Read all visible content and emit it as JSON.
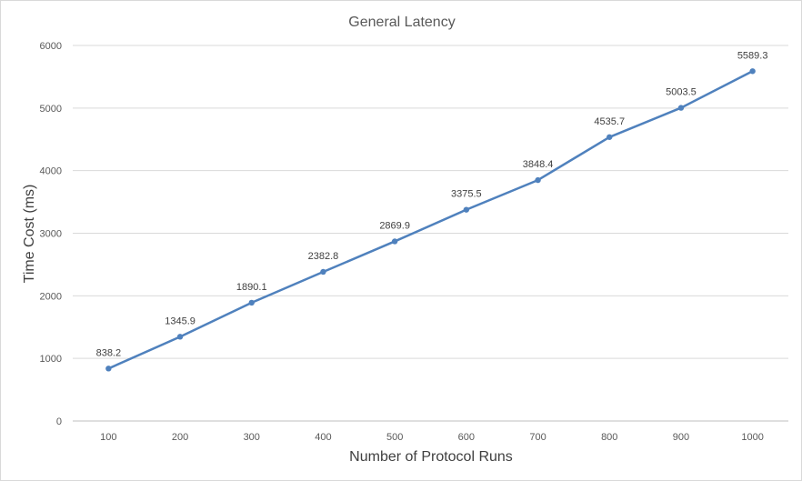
{
  "chart_data": {
    "type": "line",
    "title": "General Latency",
    "xlabel": "Number of Protocol Runs",
    "ylabel": "Time Cost (ms)",
    "categories": [
      "100",
      "200",
      "300",
      "400",
      "500",
      "600",
      "700",
      "800",
      "900",
      "1000"
    ],
    "series": [
      {
        "name": "General Latency",
        "values": [
          838.2,
          1345.9,
          1890.1,
          2382.8,
          2869.9,
          3375.5,
          3848.4,
          4535.7,
          5003.5,
          5589.3
        ],
        "data_labels": [
          "838.2",
          "1345.9",
          "1890.1",
          "2382.8",
          "2869.9",
          "3375.5",
          "3848.4",
          "4535.7",
          "5003.5",
          "5589.3"
        ]
      }
    ],
    "ylim": [
      0,
      6000
    ],
    "yticks": [
      "0",
      "1000",
      "2000",
      "3000",
      "4000",
      "5000",
      "6000"
    ],
    "grid": true,
    "legend": "none",
    "colors": {
      "line": "#4f81bd",
      "grid": "#d9d9d9",
      "text": "#595959"
    }
  }
}
